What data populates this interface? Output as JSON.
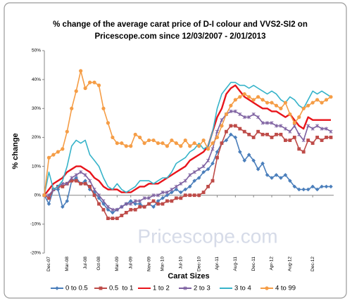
{
  "chart_data": {
    "type": "line",
    "title": [
      "% change of the average carat price of  D-I colour and VVS2-SI2  on",
      "Pricescope.com since 12/03/2007 - 2/01/2013"
    ],
    "x_label": "Carat Sizes",
    "y_label": "% change",
    "watermark": "Pricescope.com",
    "categories": [
      null,
      "Dec-07",
      null,
      null,
      null,
      "Mar-08",
      null,
      null,
      null,
      "Jul-08",
      null,
      null,
      "Oct-08",
      null,
      null,
      null,
      "Mar-09",
      null,
      null,
      "Jul-09",
      null,
      null,
      null,
      "Nov-09",
      null,
      null,
      "Mar-10",
      null,
      null,
      null,
      "Jul-10",
      null,
      null,
      null,
      "Dec-10",
      null,
      null,
      null,
      "Apr-11",
      null,
      null,
      null,
      "Aug-11",
      null,
      null,
      null,
      "Dec-11",
      null,
      null,
      null,
      "Apr-12",
      null,
      null,
      null,
      "Aug-12",
      null,
      null,
      null,
      null,
      "Dec-12",
      null,
      null,
      null,
      null
    ],
    "ylim": [
      -20,
      50
    ],
    "yticks": [
      {
        "value": -20,
        "label": "-20%"
      },
      {
        "value": -10,
        "label": "-10%"
      },
      {
        "value": 0,
        "label": "0%"
      },
      {
        "value": 10,
        "label": "10%"
      },
      {
        "value": 20,
        "label": "20%"
      },
      {
        "value": 30,
        "label": "30%"
      },
      {
        "value": 40,
        "label": "40%"
      },
      {
        "value": 50,
        "label": "50%"
      }
    ],
    "grid": false,
    "legend": "bottom",
    "series": [
      {
        "name": "0 to 0.5",
        "color": "#4a7ebb",
        "marker": "diamond",
        "values": [
          0,
          -3,
          2,
          2,
          -4,
          -2,
          5,
          6,
          4,
          5,
          2,
          1,
          -1,
          -3,
          -5,
          -6,
          -5,
          -4,
          -3,
          -2,
          -3,
          -3,
          -4,
          -3,
          -4,
          -2,
          -1,
          0,
          1,
          2,
          1,
          2,
          3,
          5,
          6,
          8,
          9,
          11,
          15,
          18,
          19,
          21,
          20,
          15,
          12,
          14,
          12,
          9,
          11,
          7,
          6,
          7,
          6,
          7,
          5,
          3,
          2,
          2,
          2,
          3,
          2,
          3,
          3,
          3
        ]
      },
      {
        "name": "0.5  to 1",
        "color": "#be4b48",
        "marker": "square",
        "values": [
          0,
          -1,
          2,
          3,
          3,
          4,
          5,
          5,
          4,
          4,
          3,
          0,
          -3,
          -5,
          -8,
          -8,
          -8,
          -7,
          -6,
          -5,
          -5,
          -4,
          -4,
          -3,
          -2,
          -3,
          -3,
          -2,
          -2,
          -1,
          -1,
          0,
          0,
          0,
          0,
          1,
          3,
          5,
          13,
          18,
          22,
          24,
          24,
          23,
          22,
          21,
          20,
          22,
          21,
          21,
          20,
          21,
          21,
          19,
          19,
          20,
          16,
          15,
          19,
          18,
          20,
          19,
          20,
          20
        ]
      },
      {
        "name": "1 to 2",
        "color": "#e8141b",
        "marker": "none",
        "values": [
          0,
          2,
          4,
          5,
          6,
          8,
          9,
          10,
          10,
          9,
          8,
          6,
          5,
          3,
          2,
          2,
          2,
          1,
          1,
          1,
          2,
          3,
          3,
          4,
          4,
          4,
          5,
          6,
          7,
          8,
          9,
          10,
          12,
          13,
          14,
          15,
          17,
          22,
          27,
          30,
          35,
          37,
          38,
          36,
          34,
          33,
          32,
          31,
          30,
          30,
          29,
          29,
          28,
          27,
          28,
          26,
          24,
          23,
          27,
          26,
          26,
          26,
          26,
          26
        ]
      },
      {
        "name": "2 to 3",
        "color": "#7d60a0",
        "marker": "cross",
        "values": [
          0,
          0,
          2,
          3,
          4,
          4,
          6,
          7,
          8,
          7,
          5,
          2,
          0,
          -2,
          -4,
          -5,
          -5,
          -4,
          -3,
          -3,
          -2,
          -2,
          -1,
          -1,
          0,
          0,
          1,
          1,
          2,
          3,
          4,
          5,
          7,
          8,
          9,
          10,
          12,
          16,
          22,
          26,
          28,
          29,
          29,
          28,
          27,
          27,
          28,
          27,
          25,
          25,
          25,
          24,
          24,
          23,
          22,
          24,
          21,
          19,
          24,
          23,
          24,
          23,
          23,
          22
        ]
      },
      {
        "name": "3 to 4",
        "color": "#36b3c9",
        "marker": "none",
        "values": [
          0,
          8,
          2,
          3,
          5,
          10,
          17,
          19,
          18,
          19,
          14,
          12,
          10,
          6,
          3,
          2,
          4,
          2,
          1,
          2,
          3,
          5,
          5,
          5,
          4,
          5,
          6,
          6,
          8,
          11,
          12,
          13,
          15,
          16,
          18,
          16,
          17,
          22,
          30,
          35,
          37,
          39,
          39,
          38,
          38,
          37,
          38,
          37,
          36,
          35,
          36,
          35,
          33,
          32,
          34,
          33,
          31,
          30,
          33,
          36,
          35,
          36,
          35,
          34
        ]
      },
      {
        "name": "4 to 99",
        "color": "#f59d46",
        "marker": "circle",
        "values": [
          0,
          13,
          14,
          15,
          16,
          22,
          30,
          36,
          43,
          37,
          39,
          39,
          38,
          30,
          25,
          20,
          18,
          18,
          17,
          17,
          21,
          20,
          18,
          19,
          19,
          18,
          18,
          17,
          19,
          18,
          17,
          19,
          17,
          18,
          17,
          19,
          16,
          18,
          20,
          24,
          28,
          31,
          33,
          34,
          35,
          34,
          33,
          34,
          33,
          32,
          32,
          31,
          30,
          32,
          28,
          25,
          27,
          30,
          31,
          32,
          33,
          32,
          33,
          34
        ]
      }
    ]
  }
}
